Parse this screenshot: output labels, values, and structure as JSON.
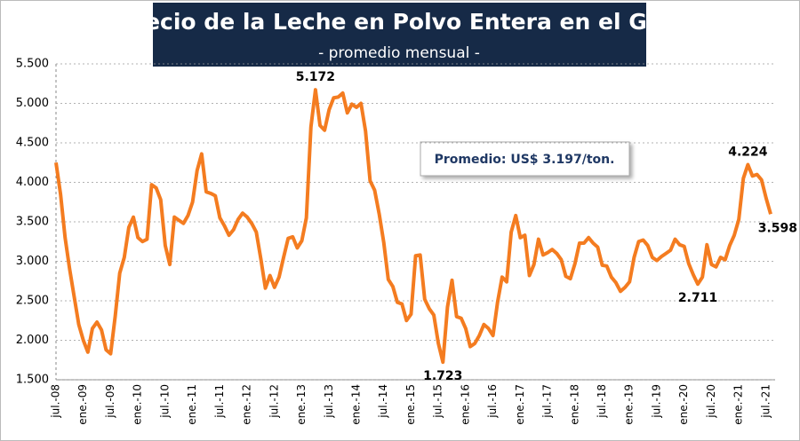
{
  "chart_data": {
    "type": "line",
    "title": "Precio de la Leche en Polvo Entera en el GDT",
    "subtitle": "- promedio mensual -",
    "annotation": "Promedio: US$ 3.197/ton.",
    "color": "#f47c20",
    "categories": [
      "jul.-08",
      null,
      null,
      null,
      null,
      null,
      "ene.-09",
      null,
      null,
      null,
      null,
      null,
      "jul.-09",
      null,
      null,
      null,
      null,
      null,
      "ene.-10",
      null,
      null,
      null,
      null,
      null,
      "jul.-10",
      null,
      null,
      null,
      null,
      null,
      "ene.-11",
      null,
      null,
      null,
      null,
      null,
      "jul.-11",
      null,
      null,
      null,
      null,
      null,
      "ene.-12",
      null,
      null,
      null,
      null,
      null,
      "jul.-12",
      null,
      null,
      null,
      null,
      null,
      "ene.-13",
      null,
      null,
      null,
      null,
      null,
      "jul.-13",
      null,
      null,
      null,
      null,
      null,
      "ene.-14",
      null,
      null,
      null,
      null,
      null,
      "jul.-14",
      null,
      null,
      null,
      null,
      null,
      "ene.-15",
      null,
      null,
      null,
      null,
      null,
      "jul.-15",
      null,
      null,
      null,
      null,
      null,
      "ene.-16",
      null,
      null,
      null,
      null,
      null,
      "jul.-16",
      null,
      null,
      null,
      null,
      null,
      "ene.-17",
      null,
      null,
      null,
      null,
      null,
      "jul.-17",
      null,
      null,
      null,
      null,
      null,
      "ene.-18",
      null,
      null,
      null,
      null,
      null,
      "jul.-18",
      null,
      null,
      null,
      null,
      null,
      "ene.-19",
      null,
      null,
      null,
      null,
      null,
      "jul.-19",
      null,
      null,
      null,
      null,
      null,
      "ene.-20",
      null,
      null,
      null,
      null,
      null,
      "jul.-20",
      null,
      null,
      null,
      null,
      null,
      "ene.-21",
      null,
      null,
      null,
      null,
      null,
      "jul.-21",
      null
    ],
    "values": [
      4250,
      3850,
      3300,
      2900,
      2550,
      2200,
      2000,
      1850,
      2150,
      2230,
      2130,
      1880,
      1830,
      2300,
      2850,
      3050,
      3430,
      3560,
      3300,
      3250,
      3280,
      3970,
      3930,
      3780,
      3200,
      2960,
      3560,
      3520,
      3480,
      3580,
      3750,
      4150,
      4360,
      3880,
      3860,
      3830,
      3550,
      3450,
      3330,
      3400,
      3530,
      3610,
      3560,
      3480,
      3370,
      3030,
      2660,
      2820,
      2670,
      2800,
      3050,
      3290,
      3310,
      3170,
      3260,
      3550,
      4700,
      5172,
      4720,
      4660,
      4920,
      5070,
      5080,
      5130,
      4880,
      4990,
      4950,
      5000,
      4650,
      4020,
      3900,
      3600,
      3240,
      2770,
      2680,
      2480,
      2460,
      2250,
      2330,
      3070,
      3080,
      2520,
      2400,
      2320,
      1960,
      1723,
      2420,
      2760,
      2300,
      2280,
      2150,
      1920,
      1960,
      2060,
      2200,
      2150,
      2060,
      2480,
      2800,
      2740,
      3370,
      3580,
      3300,
      3330,
      2820,
      2960,
      3280,
      3080,
      3110,
      3150,
      3100,
      3020,
      2810,
      2780,
      2970,
      3230,
      3230,
      3300,
      3230,
      3180,
      2950,
      2940,
      2800,
      2730,
      2620,
      2670,
      2740,
      3050,
      3250,
      3270,
      3200,
      3050,
      3010,
      3060,
      3100,
      3140,
      3280,
      3210,
      3190,
      2970,
      2830,
      2711,
      2800,
      3210,
      2960,
      2930,
      3050,
      3020,
      3200,
      3330,
      3530,
      4050,
      4224,
      4080,
      4100,
      4030,
      3800,
      3598
    ],
    "value_labels": [
      null,
      null,
      null,
      null,
      null,
      null,
      null,
      null,
      null,
      null,
      null,
      null,
      null,
      null,
      null,
      null,
      null,
      null,
      null,
      null,
      null,
      null,
      null,
      null,
      null,
      null,
      null,
      null,
      null,
      null,
      null,
      null,
      null,
      null,
      null,
      null,
      null,
      null,
      null,
      null,
      null,
      null,
      null,
      null,
      null,
      null,
      null,
      null,
      null,
      null,
      null,
      null,
      null,
      null,
      null,
      null,
      null,
      "5.172",
      null,
      null,
      null,
      null,
      null,
      null,
      null,
      null,
      null,
      null,
      null,
      null,
      null,
      null,
      null,
      null,
      null,
      null,
      null,
      null,
      null,
      null,
      null,
      null,
      null,
      null,
      null,
      "1.723",
      null,
      null,
      null,
      null,
      null,
      null,
      null,
      null,
      null,
      null,
      null,
      null,
      null,
      null,
      null,
      null,
      null,
      null,
      null,
      null,
      null,
      null,
      null,
      null,
      null,
      null,
      null,
      null,
      null,
      null,
      null,
      null,
      null,
      null,
      null,
      null,
      null,
      null,
      null,
      null,
      null,
      null,
      null,
      null,
      null,
      null,
      null,
      null,
      null,
      null,
      null,
      null,
      null,
      null,
      null,
      "2.711",
      null,
      null,
      null,
      null,
      null,
      null,
      null,
      null,
      null,
      null,
      "4.224",
      null,
      null,
      null,
      null,
      "3.598"
    ],
    "ylim": [
      1500,
      5500
    ],
    "yticks": [
      {
        "value": 1500,
        "label": "1.500"
      },
      {
        "value": 2000,
        "label": "2.000"
      },
      {
        "value": 2500,
        "label": "2.500"
      },
      {
        "value": 3000,
        "label": "3.000"
      },
      {
        "value": 3500,
        "label": "3.500"
      },
      {
        "value": 4000,
        "label": "4.000"
      },
      {
        "value": 4500,
        "label": "4.500"
      },
      {
        "value": 5000,
        "label": "5.000"
      },
      {
        "value": 5500,
        "label": "5.500"
      }
    ],
    "grid": true
  }
}
